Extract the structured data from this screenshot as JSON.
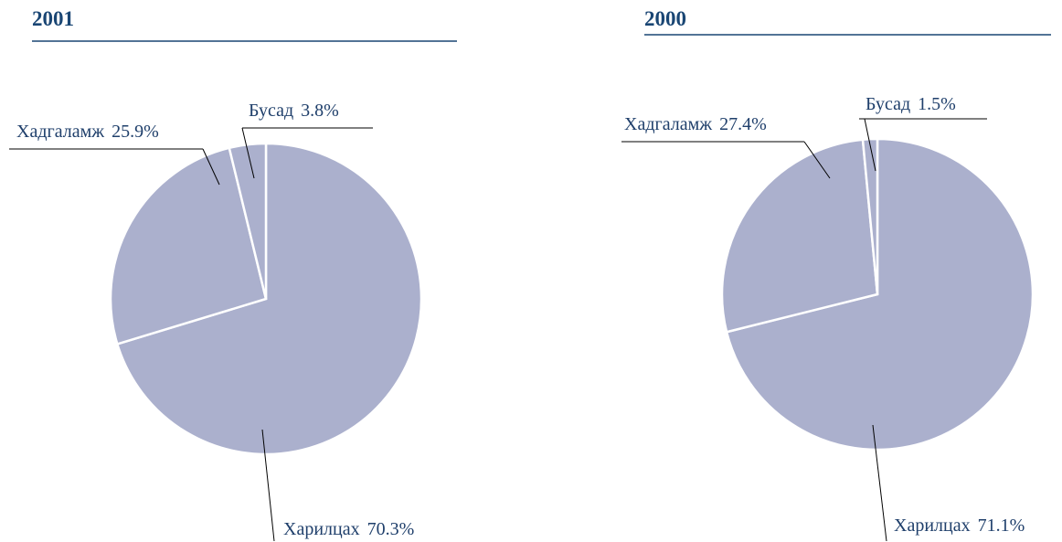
{
  "chart_data": [
    {
      "type": "pie",
      "title": "2001",
      "categories": [
        "Харилцах",
        "Хадгаламж",
        "Бусад"
      ],
      "values": [
        70.3,
        25.9,
        3.8
      ],
      "value_labels": [
        "70.3%",
        "25.9%",
        "3.8%"
      ],
      "color": "#abb0cd"
    },
    {
      "type": "pie",
      "title": "2000",
      "categories": [
        "Харилцах",
        "Хадгаламж",
        "Бусад"
      ],
      "values": [
        71.1,
        27.4,
        1.5
      ],
      "value_labels": [
        "71.1%",
        "27.4%",
        "1.5%"
      ],
      "color": "#abb0cd"
    }
  ]
}
